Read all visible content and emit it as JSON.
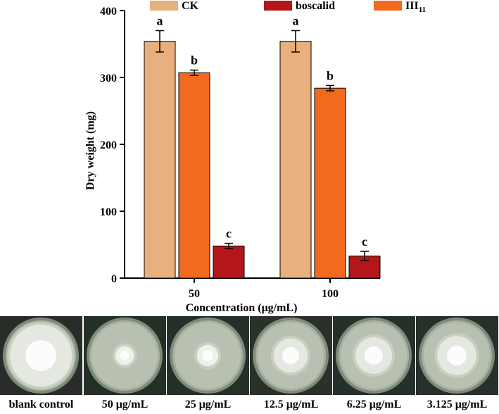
{
  "chart_data": {
    "type": "bar",
    "categories": [
      "50",
      "100"
    ],
    "series": [
      {
        "name": "CK",
        "color": "#E8B07E",
        "values": [
          354,
          354
        ],
        "errors": [
          16,
          16
        ],
        "letters": [
          "a",
          "a"
        ]
      },
      {
        "name": "III11",
        "name_main": "III",
        "name_sub": "11",
        "color": "#F26A1E",
        "values": [
          307,
          284
        ],
        "errors": [
          4,
          4
        ],
        "letters": [
          "b",
          "b"
        ]
      },
      {
        "name": "boscalid",
        "color": "#B3171A",
        "values": [
          48,
          33
        ],
        "errors": [
          4,
          7
        ],
        "letters": [
          "c",
          "c"
        ]
      }
    ],
    "legend_order": [
      "CK",
      "boscalid",
      "III11"
    ],
    "xlabel": "Concentration (μg/mL)",
    "ylabel": "Dry weight (mg)",
    "ylim": [
      0,
      400
    ],
    "yticks": [
      0,
      100,
      200,
      300,
      400
    ],
    "legend_position": "top"
  },
  "photos": {
    "captions": [
      "blank control",
      "50 μg/mL",
      "25 μg/mL",
      "12.5 μg/mL",
      "6.25 μg/mL",
      "3.125 μg/mL"
    ],
    "colony_levels": [
      1.0,
      0.15,
      0.2,
      0.45,
      0.5,
      0.55
    ]
  }
}
